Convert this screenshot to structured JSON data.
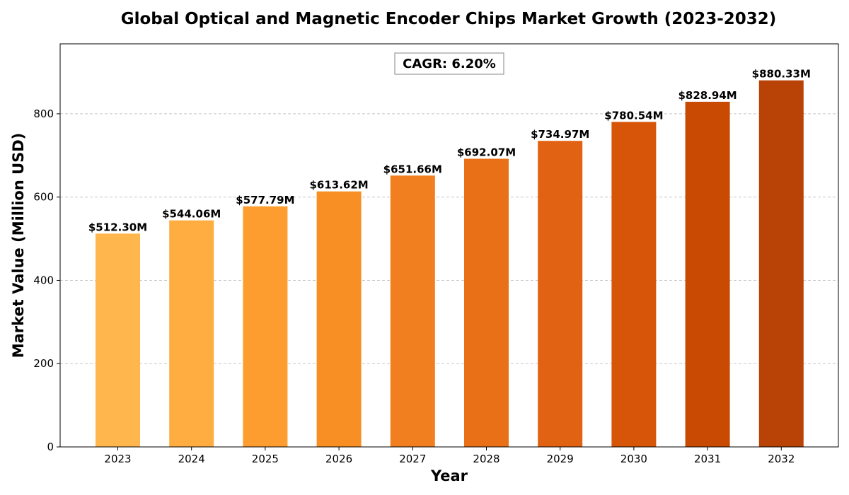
{
  "chart_data": {
    "type": "bar",
    "title": "Global Optical and Magnetic Encoder Chips Market Growth (2023-2032)",
    "xlabel": "Year",
    "ylabel": "Market Value (Million USD)",
    "categories": [
      "2023",
      "2024",
      "2025",
      "2026",
      "2027",
      "2028",
      "2029",
      "2030",
      "2031",
      "2032"
    ],
    "values": [
      512.3,
      544.06,
      577.79,
      613.62,
      651.66,
      692.07,
      734.97,
      780.54,
      828.94,
      880.33
    ],
    "data_labels": [
      "$512.30M",
      "$544.06M",
      "$577.79M",
      "$613.62M",
      "$651.66M",
      "$692.07M",
      "$734.97M",
      "$780.54M",
      "$828.94M",
      "$880.33M"
    ],
    "colors": [
      "#FFB74D",
      "#FFAD40",
      "#FD9D2F",
      "#F78F25",
      "#F17F1F",
      "#E97016",
      "#E06212",
      "#D65509",
      "#C94B03",
      "#B94307"
    ],
    "yticks": [
      0,
      200,
      400,
      600,
      800
    ],
    "ylim": [
      0,
      968
    ],
    "grid": true,
    "annotation": "CAGR: 6.20%"
  }
}
